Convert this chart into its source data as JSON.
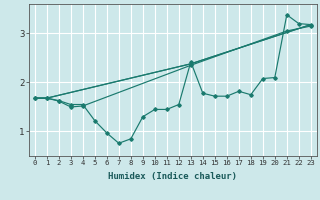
{
  "background_color": "#cde8ea",
  "grid_color": "#ffffff",
  "line_color": "#1a7a6e",
  "xlabel": "Humidex (Indice chaleur)",
  "xlim": [
    -0.5,
    23.5
  ],
  "ylim": [
    0.5,
    3.6
  ],
  "yticks": [
    1,
    2,
    3
  ],
  "xticks": [
    0,
    1,
    2,
    3,
    4,
    5,
    6,
    7,
    8,
    9,
    10,
    11,
    12,
    13,
    14,
    15,
    16,
    17,
    18,
    19,
    20,
    21,
    22,
    23
  ],
  "series_zigzag": [
    1.68,
    1.68,
    1.63,
    1.55,
    1.55,
    1.22,
    0.97,
    0.76,
    0.85,
    1.3,
    1.45,
    1.45,
    1.55,
    2.42,
    1.78,
    1.72,
    1.72,
    1.82,
    1.75,
    2.08,
    2.1,
    3.38,
    3.2,
    3.18
  ],
  "line1_x": [
    0,
    1,
    2,
    3,
    4,
    13,
    21,
    23
  ],
  "line1_y": [
    1.68,
    1.68,
    1.62,
    1.5,
    1.52,
    2.35,
    3.05,
    3.15
  ],
  "line2_x": [
    0,
    1,
    13,
    23
  ],
  "line2_y": [
    1.68,
    1.68,
    2.38,
    3.18
  ],
  "line3_x": [
    0,
    1,
    13,
    23
  ],
  "line3_y": [
    1.68,
    1.68,
    2.38,
    3.18
  ]
}
